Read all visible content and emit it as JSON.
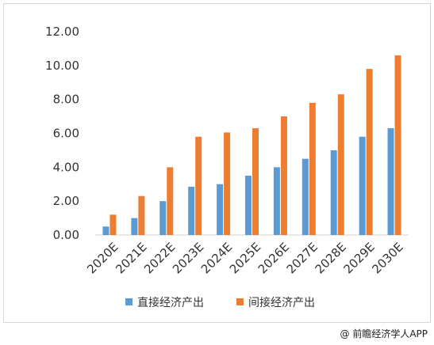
{
  "chart_data": {
    "type": "bar",
    "title": "",
    "xlabel": "",
    "ylabel": "",
    "ylim": [
      0,
      12
    ],
    "yticks": [
      "0.00",
      "2.00",
      "4.00",
      "6.00",
      "8.00",
      "10.00",
      "12.00"
    ],
    "categories": [
      "2020E",
      "2021E",
      "2022E",
      "2023E",
      "2024E",
      "2025E",
      "2026E",
      "2027E",
      "2028E",
      "2029E",
      "2030E"
    ],
    "series": [
      {
        "name": "直接经济产出",
        "color": "#5b9bd5",
        "values": [
          0.5,
          1.0,
          2.0,
          2.85,
          3.0,
          3.5,
          4.0,
          4.5,
          5.0,
          5.8,
          6.3
        ]
      },
      {
        "name": "间接经济产出",
        "color": "#ed7d31",
        "values": [
          1.2,
          2.3,
          4.0,
          5.8,
          6.05,
          6.3,
          7.0,
          7.8,
          8.3,
          9.8,
          10.6
        ]
      }
    ],
    "grid": false,
    "legend": "bottom-center"
  },
  "footer": {
    "credit": "@ 前瞻经济学人APP"
  }
}
